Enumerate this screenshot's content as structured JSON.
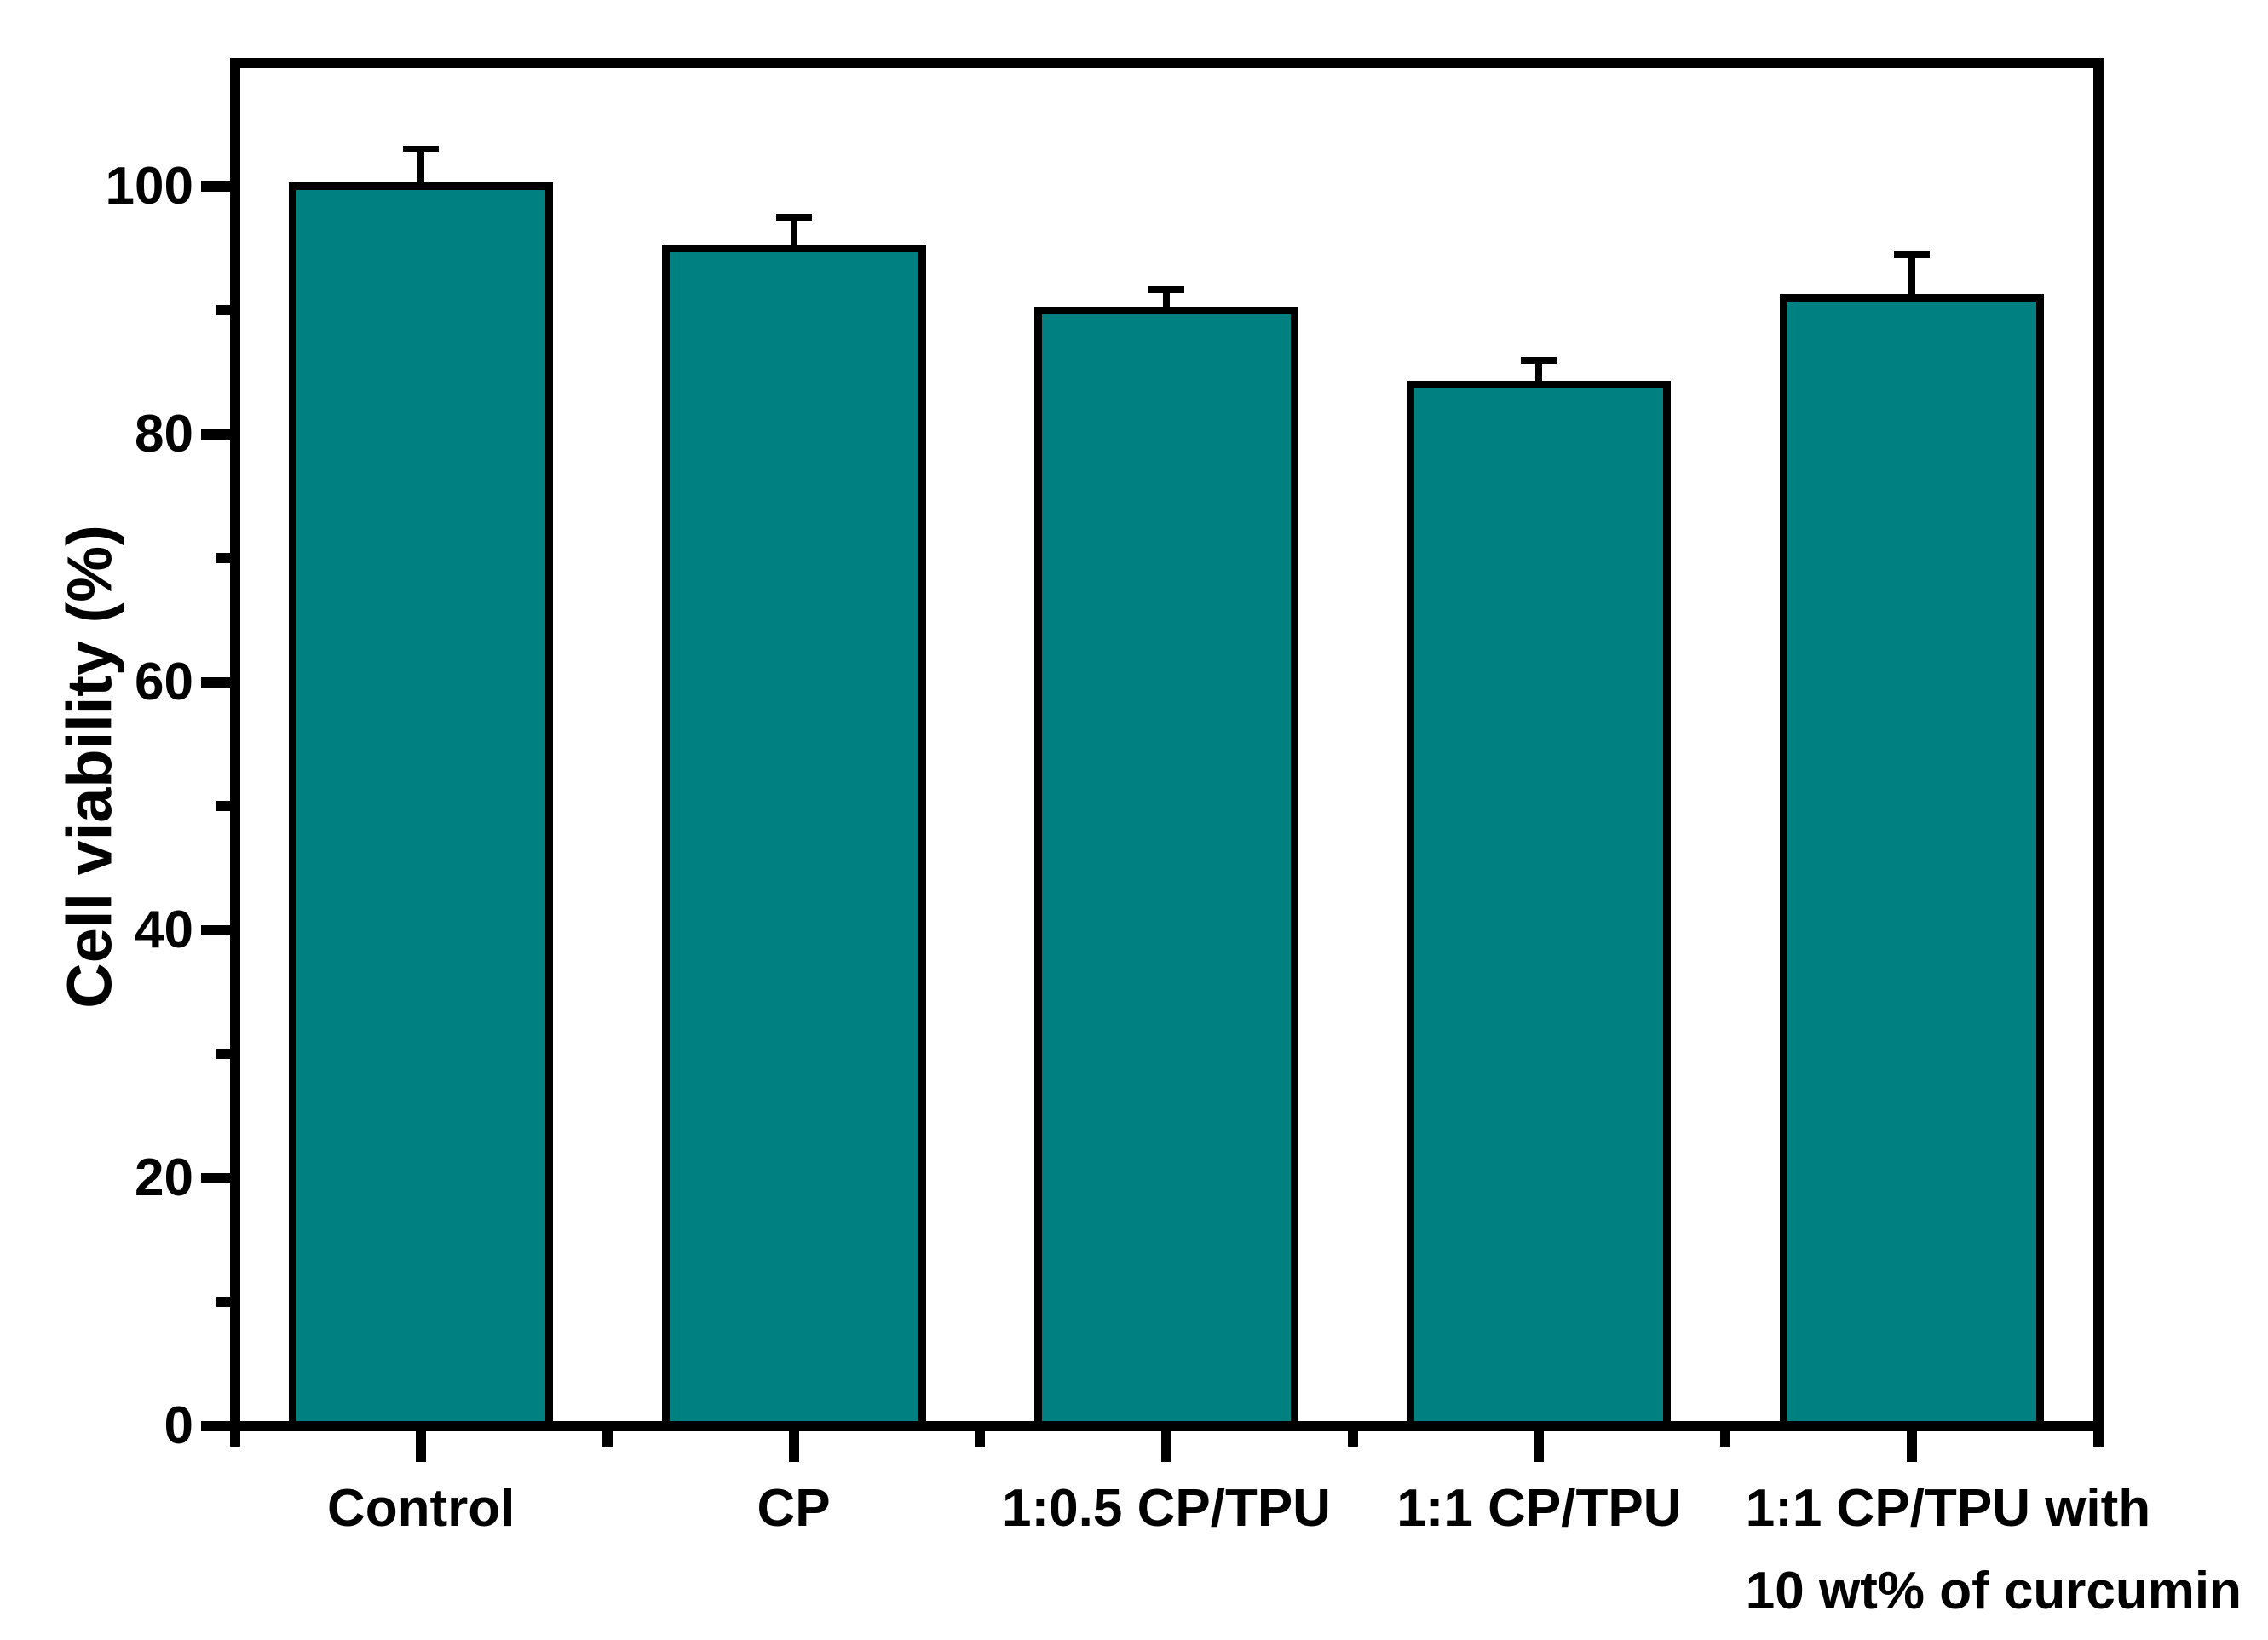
{
  "figure": {
    "background": "#ffffff",
    "text_color": "#000000",
    "axis_color": "#000000"
  },
  "chart_data": {
    "type": "bar",
    "title": "",
    "xlabel": "",
    "ylabel": "Cell viability (%)",
    "categories": [
      "Control",
      "CP",
      "1:0.5 CP/TPU",
      "1:1 CP/TPU",
      "1:1 CP/TPU with\n10 wt% of curcumin"
    ],
    "values": [
      100,
      95,
      90,
      84,
      91
    ],
    "errors": [
      3,
      2.5,
      1.7,
      2,
      3.5
    ],
    "error_direction": "up-only",
    "ylim": [
      0,
      110
    ],
    "yticks_major": [
      0,
      20,
      40,
      60,
      80,
      100
    ],
    "ytick_labels": [
      "0",
      "20",
      "40",
      "60",
      "80",
      "100"
    ],
    "yticks_minor": [
      10,
      30,
      50,
      70,
      90
    ],
    "bar_color": "#008080",
    "bar_edge_color": "#000000",
    "grid": false,
    "legend": "none"
  }
}
